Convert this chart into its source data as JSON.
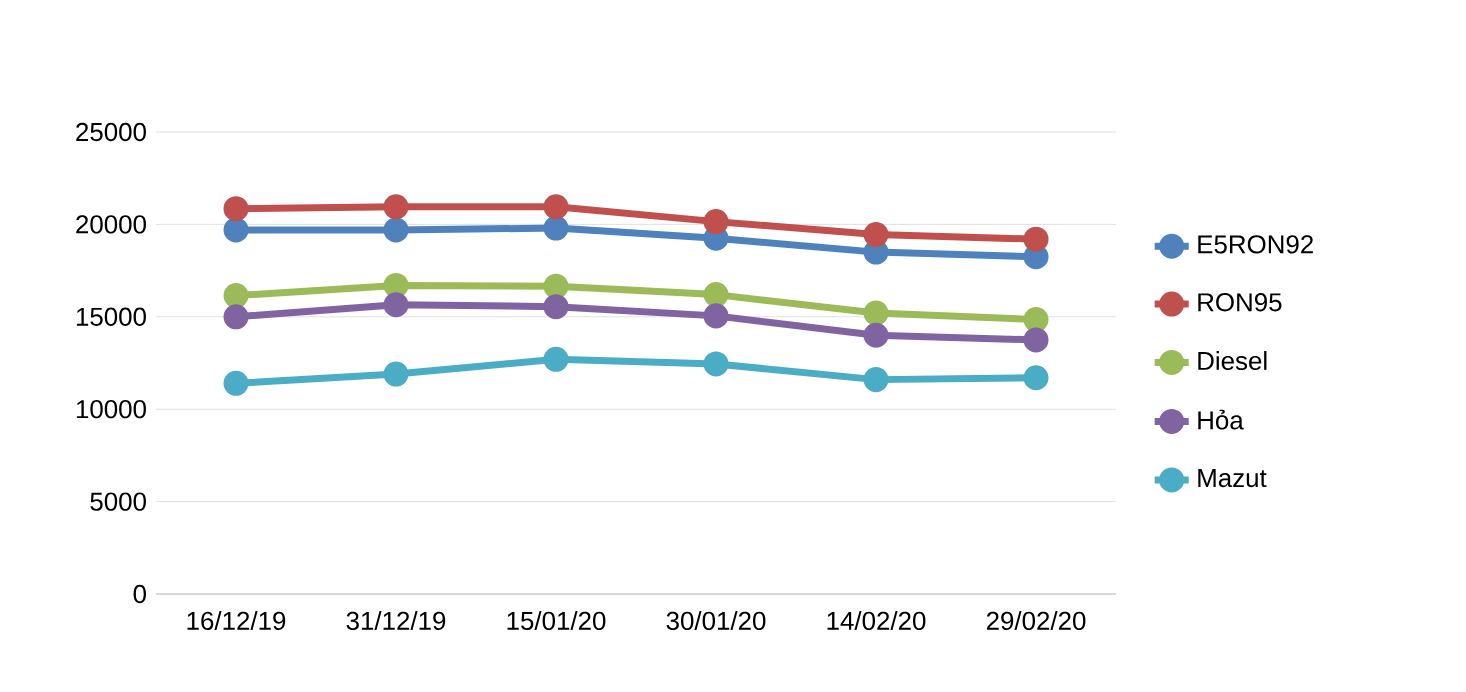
{
  "chart_data": {
    "type": "line",
    "categories": [
      "16/12/19",
      "31/12/19",
      "15/01/20",
      "30/01/20",
      "14/02/20",
      "29/02/20"
    ],
    "series": [
      {
        "name": "E5RON92",
        "color": "#4f81bd",
        "values": [
          19700,
          19700,
          19800,
          19250,
          18500,
          18250
        ]
      },
      {
        "name": "RON95",
        "color": "#c0504d",
        "values": [
          20850,
          20950,
          20950,
          20150,
          19450,
          19200
        ]
      },
      {
        "name": "Diesel",
        "color": "#9bbb59",
        "values": [
          16150,
          16700,
          16650,
          16200,
          15200,
          14850
        ]
      },
      {
        "name": "Hỏa",
        "color": "#8064a2",
        "values": [
          15000,
          15650,
          15550,
          15050,
          14000,
          13750
        ]
      },
      {
        "name": "Mazut",
        "color": "#4bacc6",
        "values": [
          11400,
          11900,
          12700,
          12450,
          11600,
          11700
        ]
      }
    ],
    "ylim": [
      0,
      25000
    ],
    "yticks": [
      0,
      5000,
      10000,
      15000,
      20000,
      25000
    ],
    "grid": "y",
    "legend": "right",
    "marker": "circle",
    "line_style": "solid"
  }
}
